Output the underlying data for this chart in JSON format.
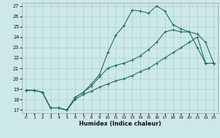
{
  "xlabel": "Humidex (Indice chaleur)",
  "bg_color": "#cce8e8",
  "grid_color": "#aacfcf",
  "line_color": "#1a6b5a",
  "xlim": [
    -0.5,
    23.5
  ],
  "ylim": [
    16.7,
    27.3
  ],
  "xticks": [
    0,
    1,
    2,
    3,
    4,
    5,
    6,
    7,
    8,
    9,
    10,
    11,
    12,
    13,
    14,
    15,
    16,
    17,
    18,
    19,
    20,
    21,
    22,
    23
  ],
  "yticks": [
    17,
    18,
    19,
    20,
    21,
    22,
    23,
    24,
    25,
    26,
    27
  ],
  "line_upper_x": [
    0,
    1,
    2,
    3,
    4,
    5,
    6,
    7,
    8,
    9,
    10,
    11,
    12,
    13,
    14,
    15,
    16,
    17,
    18,
    19,
    20,
    21,
    22,
    23
  ],
  "line_upper_y": [
    18.9,
    18.9,
    18.7,
    17.2,
    17.2,
    17.0,
    18.2,
    18.7,
    19.5,
    20.4,
    22.5,
    24.2,
    25.1,
    26.6,
    26.5,
    26.3,
    27.0,
    26.5,
    25.2,
    24.8,
    24.5,
    23.0,
    21.5,
    21.5
  ],
  "line_mid_x": [
    0,
    1,
    2,
    3,
    4,
    5,
    6,
    7,
    8,
    9,
    10,
    11,
    12,
    13,
    14,
    15,
    16,
    17,
    18,
    19,
    20,
    21,
    22,
    23
  ],
  "line_mid_y": [
    18.9,
    18.9,
    18.7,
    17.2,
    17.2,
    17.0,
    18.2,
    18.7,
    19.3,
    20.2,
    21.0,
    21.3,
    21.5,
    21.8,
    22.2,
    22.8,
    23.5,
    24.5,
    24.7,
    24.5,
    24.5,
    24.3,
    23.5,
    21.5
  ],
  "line_lower_x": [
    0,
    1,
    2,
    3,
    4,
    5,
    6,
    7,
    8,
    9,
    10,
    11,
    12,
    13,
    14,
    15,
    16,
    17,
    18,
    19,
    20,
    21,
    22,
    23
  ],
  "line_lower_y": [
    18.9,
    18.9,
    18.7,
    17.2,
    17.2,
    17.0,
    18.0,
    18.5,
    18.8,
    19.2,
    19.5,
    19.8,
    20.0,
    20.3,
    20.7,
    21.0,
    21.5,
    22.0,
    22.5,
    23.0,
    23.5,
    24.0,
    21.5,
    21.5
  ]
}
